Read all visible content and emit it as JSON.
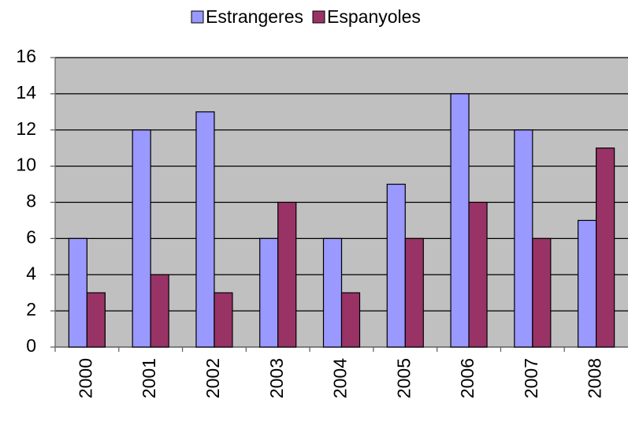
{
  "chart_data": {
    "type": "bar",
    "categories": [
      "2000",
      "2001",
      "2002",
      "2003",
      "2004",
      "2005",
      "2006",
      "2007",
      "2008"
    ],
    "series": [
      {
        "name": "Estrangeres",
        "color": "#9999ff",
        "values": [
          6,
          12,
          13,
          6,
          6,
          9,
          14,
          12,
          7
        ]
      },
      {
        "name": "Espanyoles",
        "color": "#993366",
        "values": [
          3,
          4,
          3,
          8,
          3,
          6,
          8,
          6,
          11
        ]
      }
    ],
    "ylim": [
      0,
      16
    ],
    "yticks": [
      0,
      2,
      4,
      6,
      8,
      10,
      12,
      14,
      16
    ],
    "grid": true,
    "legend": "top"
  }
}
